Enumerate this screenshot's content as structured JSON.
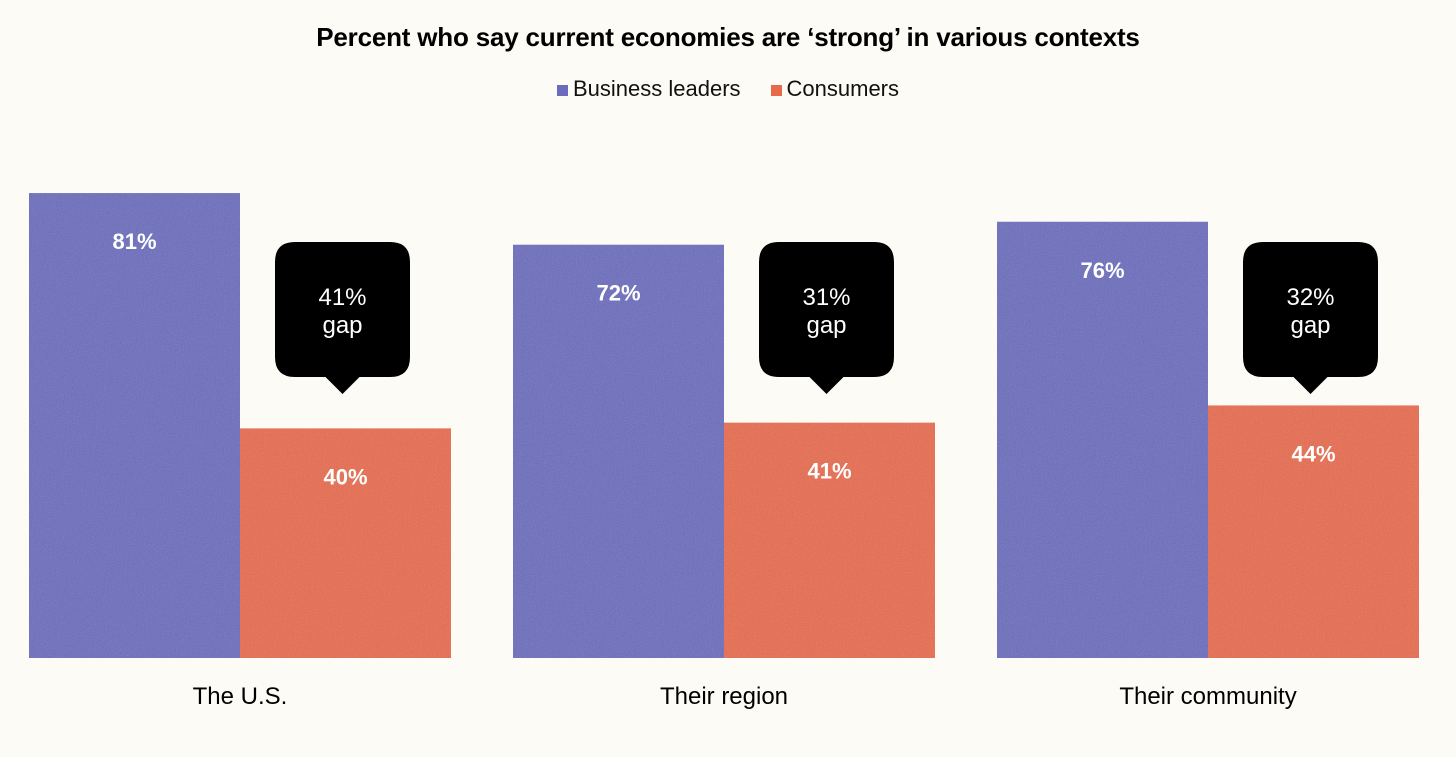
{
  "chart_data": {
    "type": "bar",
    "title": "Percent who say current economies are ‘strong’ in various contexts",
    "categories": [
      "The U.S.",
      "Their region",
      "Their community"
    ],
    "series": [
      {
        "name": "Business leaders",
        "values": [
          81,
          72,
          76
        ],
        "labels": [
          "81%",
          "72%",
          "76%"
        ],
        "color": "#6b6cbd"
      },
      {
        "name": "Consumers",
        "values": [
          40,
          41,
          44
        ],
        "labels": [
          "40%",
          "41%",
          "44%"
        ],
        "color": "#e66a4a"
      }
    ],
    "annotations": [
      {
        "value": "41%",
        "text": "gap"
      },
      {
        "value": "31%",
        "text": "gap"
      },
      {
        "value": "32%",
        "text": "gap"
      }
    ],
    "ylim": [
      0,
      100
    ],
    "grid": false,
    "legend": "top-center",
    "xlabel": "",
    "ylabel": ""
  }
}
